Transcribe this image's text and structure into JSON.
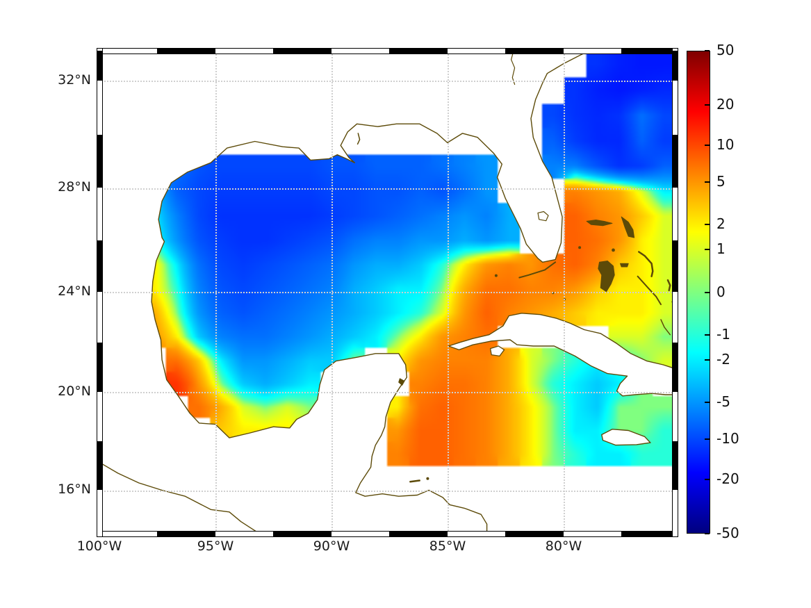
{
  "figure": {
    "x_axis": {
      "ticks": [
        {
          "label": "100°W",
          "lon": -100
        },
        {
          "label": "95°W",
          "lon": -95
        },
        {
          "label": "90°W",
          "lon": -90
        },
        {
          "label": "85°W",
          "lon": -85
        },
        {
          "label": "80°W",
          "lon": -80
        }
      ]
    },
    "y_axis": {
      "ticks": [
        {
          "label": "32°N",
          "lat": 32
        },
        {
          "label": "28°N",
          "lat": 28
        },
        {
          "label": "24°N",
          "lat": 24
        },
        {
          "label": "20°N",
          "lat": 20
        },
        {
          "label": "16°N",
          "lat": 16
        }
      ]
    }
  },
  "colorbar": {
    "orientation": "vertical",
    "ticks": [
      {
        "label": "50",
        "value": 50
      },
      {
        "label": "20",
        "value": 20
      },
      {
        "label": "10",
        "value": 10
      },
      {
        "label": "5",
        "value": 5
      },
      {
        "label": "2",
        "value": 2
      },
      {
        "label": "1",
        "value": 1
      },
      {
        "label": "0",
        "value": 0
      },
      {
        "label": "-1",
        "value": -1
      },
      {
        "label": "-2",
        "value": -2
      },
      {
        "label": "-5",
        "value": -5
      },
      {
        "label": "-10",
        "value": -10
      },
      {
        "label": "-20",
        "value": -20
      },
      {
        "label": "-50",
        "value": -50
      }
    ]
  },
  "colors": {
    "coastline": "#5c4a08",
    "gridline": "#cfcfcf",
    "frame_black": "#000000",
    "background": "#ffffff"
  },
  "chart_data": {
    "type": "heatmap",
    "title": "",
    "region": "Gulf of Mexico, western Caribbean and adjacent North Atlantic",
    "x": "longitude_deg",
    "y": "latitude_deg",
    "lon_min": -100,
    "lon_max": -75.2,
    "lat_min": 14.2,
    "lat_max": 33.07,
    "value_scale": "symlog",
    "vmin": -50,
    "vmax": 50,
    "colormap": "jet",
    "grid_rows_north_to_south": true,
    "values": [
      [
        null,
        null,
        null,
        null,
        null,
        null,
        null,
        null,
        null,
        null,
        null,
        null,
        null,
        null,
        null,
        null,
        null,
        null,
        null,
        null,
        null,
        null,
        -12,
        -14,
        -15,
        -15
      ],
      [
        null,
        null,
        null,
        null,
        null,
        null,
        null,
        null,
        null,
        null,
        null,
        null,
        null,
        null,
        null,
        null,
        null,
        null,
        null,
        null,
        null,
        -12,
        -14,
        -15,
        -14,
        -13
      ],
      [
        null,
        null,
        null,
        null,
        null,
        null,
        null,
        null,
        null,
        null,
        null,
        null,
        null,
        null,
        null,
        null,
        null,
        null,
        null,
        null,
        -10,
        -12,
        -13,
        -12,
        -7,
        -10
      ],
      [
        null,
        null,
        null,
        null,
        null,
        null,
        null,
        null,
        null,
        null,
        null,
        null,
        null,
        null,
        null,
        null,
        null,
        null,
        null,
        null,
        -8,
        -11,
        -13,
        -13,
        -8,
        -11
      ],
      [
        null,
        null,
        null,
        -7,
        -9,
        -10,
        -10,
        -10,
        -10,
        -10,
        -9,
        -9,
        -8,
        -8,
        -8,
        -7,
        -6,
        -5,
        null,
        null,
        -6,
        -6,
        -9,
        -12,
        -11,
        -8
      ],
      [
        null,
        null,
        -3,
        -8,
        -10,
        -11,
        -11,
        -11,
        -11,
        -11,
        -10,
        -10,
        -9,
        -9,
        -8,
        -9,
        -7,
        -5,
        null,
        null,
        null,
        6,
        5,
        4,
        1,
        -2
      ],
      [
        null,
        null,
        -2,
        -6,
        -10,
        -12,
        -12,
        -12,
        -12,
        -12,
        -11,
        -10,
        -9,
        -8,
        -7,
        -6,
        -5,
        -6,
        -4,
        null,
        null,
        8,
        6,
        5,
        3,
        1
      ],
      [
        null,
        null,
        -1,
        -5,
        -9,
        -11,
        -12,
        -12,
        -11,
        -10,
        -9,
        -7,
        -6,
        -6,
        -5,
        -5,
        -4,
        -5,
        -4,
        null,
        null,
        8,
        7,
        5,
        2,
        1
      ],
      [
        null,
        null,
        2,
        -2,
        -7,
        -10,
        -11,
        -10,
        -9,
        -8,
        -7,
        -5,
        -4,
        -4,
        -3,
        -1,
        2,
        5,
        6,
        5,
        7,
        8,
        6,
        3,
        2,
        1
      ],
      [
        null,
        null,
        2,
        -1,
        -6,
        -9,
        -10,
        -9,
        -8,
        -7,
        -6,
        -4,
        -3,
        -2,
        -2,
        0,
        4,
        7,
        7,
        6,
        6,
        5,
        3,
        2,
        2,
        1
      ],
      [
        null,
        null,
        4,
        0,
        -5,
        -8,
        -9,
        -8,
        -7,
        -6,
        -5,
        -4,
        -3,
        -2,
        -1,
        1,
        5,
        8,
        6,
        5,
        4,
        3,
        2,
        2,
        2,
        1
      ],
      [
        null,
        null,
        5,
        2,
        -3,
        -6,
        -7,
        -7,
        -6,
        -5,
        -4,
        -3,
        -2,
        0,
        2,
        5,
        6,
        7,
        null,
        null,
        null,
        null,
        null,
        1,
        1,
        0
      ],
      [
        null,
        null,
        null,
        7,
        3,
        -2,
        -5,
        -5,
        -4,
        -3,
        -3,
        0,
        null,
        2,
        5,
        6,
        6,
        6,
        4,
        1,
        0,
        -1,
        -2,
        -1,
        0,
        1
      ],
      [
        null,
        null,
        null,
        12,
        5,
        0,
        -3,
        -4,
        -3,
        -2,
        null,
        null,
        null,
        null,
        6,
        7,
        7,
        6,
        4,
        1,
        -1,
        -2,
        -3,
        -2,
        0,
        null
      ],
      [
        null,
        null,
        null,
        null,
        7,
        4,
        1,
        0,
        1,
        0,
        null,
        null,
        null,
        2,
        7,
        8,
        7,
        6,
        4,
        2,
        0,
        -2,
        -3,
        0,
        0,
        0
      ],
      [
        null,
        null,
        null,
        null,
        null,
        3,
        2,
        2,
        2,
        1,
        null,
        null,
        null,
        5,
        8,
        8,
        7,
        6,
        4,
        2,
        0,
        -2,
        -2,
        0,
        0,
        -1
      ],
      [
        null,
        null,
        null,
        null,
        null,
        null,
        null,
        null,
        null,
        null,
        null,
        null,
        null,
        6,
        8,
        8,
        7,
        6,
        4,
        2,
        0,
        -1,
        -2,
        -2,
        -1,
        -1
      ],
      [
        null,
        null,
        null,
        null,
        null,
        null,
        null,
        null,
        null,
        null,
        null,
        null,
        null,
        null,
        null,
        null,
        null,
        null,
        null,
        null,
        null,
        null,
        null,
        null,
        null,
        null
      ],
      [
        null,
        null,
        null,
        null,
        null,
        null,
        null,
        null,
        null,
        null,
        null,
        null,
        null,
        null,
        null,
        null,
        null,
        null,
        null,
        null,
        null,
        null,
        null,
        null,
        null,
        null
      ],
      [
        null,
        null,
        null,
        null,
        null,
        null,
        null,
        null,
        null,
        null,
        null,
        null,
        null,
        null,
        null,
        null,
        null,
        null,
        null,
        null,
        null,
        null,
        null,
        null,
        null,
        null
      ]
    ]
  }
}
